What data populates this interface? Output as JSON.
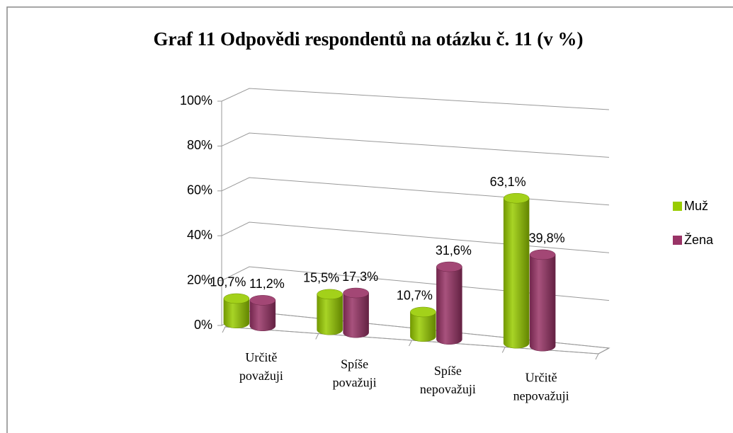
{
  "chart_data": {
    "type": "bar3d",
    "title": "Graf 11  Odpovědi respondentů na otázku č. 11 (v %)",
    "categories": [
      [
        "Určitě",
        "považuji"
      ],
      [
        "Spíše",
        "považuji"
      ],
      [
        "Spíše",
        "nepovažuji"
      ],
      [
        "Určitě",
        "nepovažuji"
      ]
    ],
    "series": [
      {
        "name": "Muž",
        "color": "#99cc00",
        "values": [
          10.7,
          15.5,
          10.7,
          63.1
        ],
        "value_labels": [
          "10,7%",
          "15,5%",
          "10,7%",
          "63,1%"
        ]
      },
      {
        "name": "Žena",
        "color": "#993366",
        "values": [
          11.2,
          17.3,
          31.6,
          39.8
        ],
        "value_labels": [
          "11,2%",
          "17,3%",
          "31,6%",
          "39,8%"
        ]
      }
    ],
    "ylim": [
      0,
      100
    ],
    "yticks": [
      {
        "value": 0,
        "label": "0%"
      },
      {
        "value": 20,
        "label": "20%"
      },
      {
        "value": 40,
        "label": "40%"
      },
      {
        "value": 60,
        "label": "60%"
      },
      {
        "value": 80,
        "label": "80%"
      },
      {
        "value": 100,
        "label": "100%"
      }
    ],
    "grid": true,
    "legend": "right"
  }
}
